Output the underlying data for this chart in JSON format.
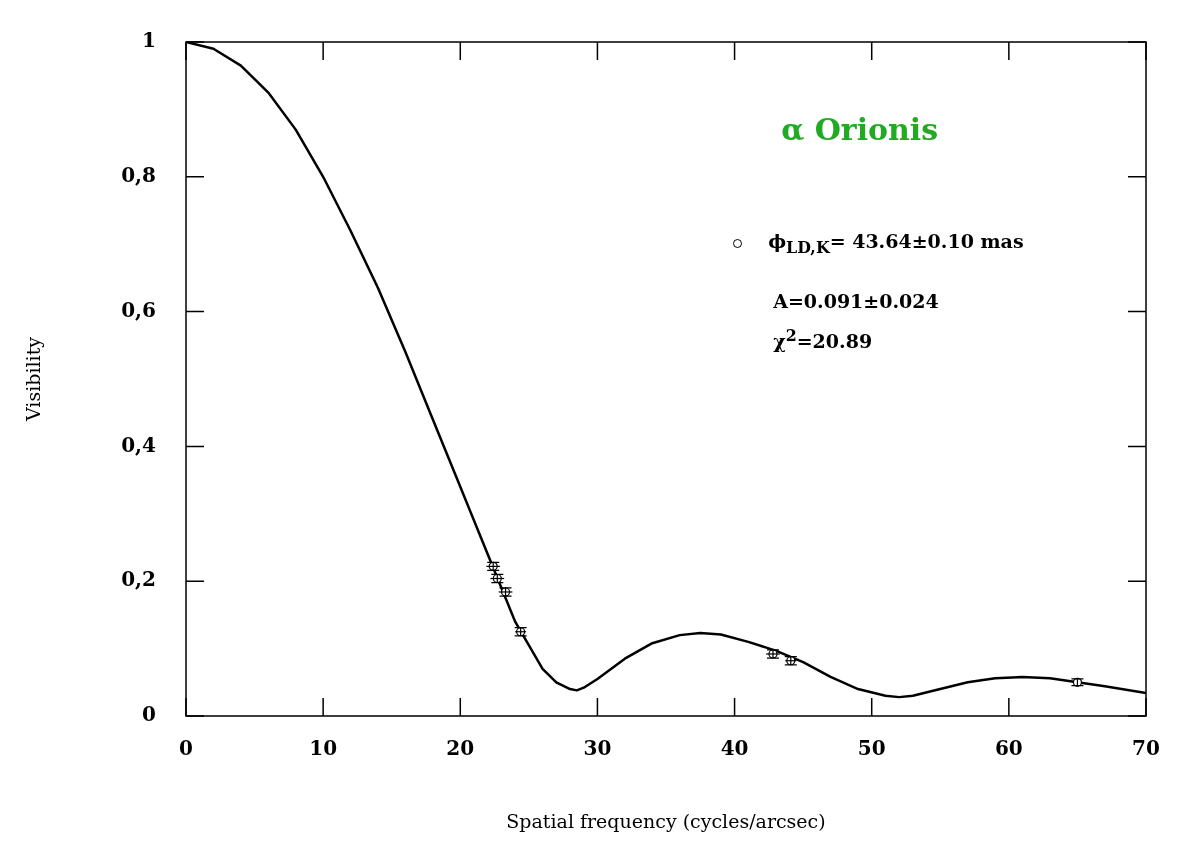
{
  "chart_data": {
    "type": "line",
    "title": "α Orionis",
    "xlabel": "Spatial frequency (cycles/arcsec)",
    "ylabel": "Visibility",
    "xlim": [
      0,
      70
    ],
    "xticks": [
      0,
      10,
      20,
      30,
      40,
      50,
      60,
      70
    ],
    "ylim": [
      0,
      1
    ],
    "yticks": [
      0,
      {
        "value": 0.2,
        "label": "0,2"
      },
      {
        "value": 0.4,
        "label": "0,4"
      },
      {
        "value": 0.6,
        "label": "0,6"
      },
      {
        "value": 0.8,
        "label": "0,8"
      },
      1
    ],
    "grid": false,
    "legend": "top right",
    "annotations": [
      "A=0.091±0.024",
      "χ$^{2}$=20.89"
    ],
    "series": [
      {
        "color": "#000000",
        "marker": "none",
        "x": [
          0,
          2,
          4,
          6,
          8,
          10,
          12,
          14,
          16,
          18,
          20,
          22,
          24,
          26,
          27,
          28,
          28.5,
          29,
          30,
          32,
          34,
          36,
          37.5,
          39,
          41,
          43,
          45,
          47,
          49,
          51,
          52,
          53,
          55,
          57,
          59,
          61,
          63,
          65,
          67,
          70
        ],
        "values": [
          1,
          0.99,
          0.965,
          0.925,
          0.87,
          0.8,
          0.72,
          0.635,
          0.54,
          0.44,
          0.34,
          0.24,
          0.14,
          0.07,
          0.05,
          0.04,
          0.038,
          0.042,
          0.055,
          0.085,
          0.108,
          0.12,
          0.123,
          0.121,
          0.11,
          0.097,
          0.08,
          0.058,
          0.04,
          0.03,
          0.028,
          0.03,
          0.04,
          0.05,
          0.056,
          0.058,
          0.056,
          0.05,
          0.044,
          0.034
        ]
      },
      {
        "type": "scatter",
        "name": "ϕ$_{LD,K}$= 43.64±0.10 mas",
        "color": "#000000",
        "marker": "circle",
        "x": [
          22.4,
          22.7,
          23.3,
          24.4,
          42.8,
          44.1,
          65.0
        ],
        "values": [
          0.222,
          0.204,
          0.184,
          0.125,
          0.092,
          0.082,
          0.05
        ],
        "errors": [
          0.006,
          0.006,
          0.006,
          0.006,
          0.006,
          0.006,
          0.005
        ],
        "xerrors": [
          0.5,
          0.5,
          0.5,
          0.4,
          0.5,
          0.4,
          null
        ]
      }
    ]
  }
}
